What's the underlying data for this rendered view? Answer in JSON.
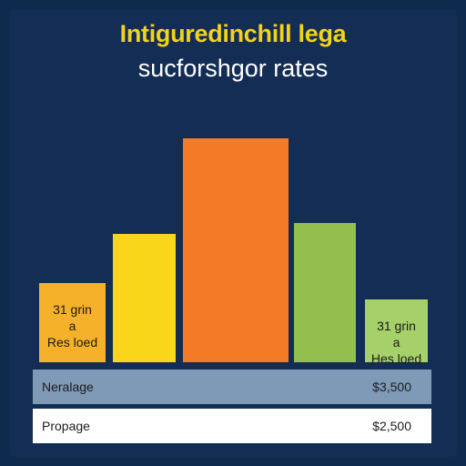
{
  "chart_data": {
    "type": "bar",
    "title": "Intiguredinchill lega",
    "subtitle": "sucforshgor rates",
    "categories": [
      "",
      "",
      "",
      "",
      ""
    ],
    "values": [
      29,
      47,
      82,
      51,
      23
    ],
    "colors": [
      "#f6b12a",
      "#fad61b",
      "#f57a26",
      "#92bf4e",
      "#a6d06a"
    ],
    "bar_labels": [
      {
        "index": 0,
        "lines": [
          "31 grin",
          "a",
          "Res loed"
        ]
      },
      {
        "index": 4,
        "lines": [
          "31 grin",
          "a",
          "Hes loed"
        ]
      }
    ],
    "ylim": [
      0,
      100
    ],
    "grid": false,
    "legend": "none"
  },
  "table": {
    "rows": [
      {
        "label": "Neralage",
        "value": "$3,500"
      },
      {
        "label": "Propage",
        "value": "$2,500"
      }
    ]
  }
}
